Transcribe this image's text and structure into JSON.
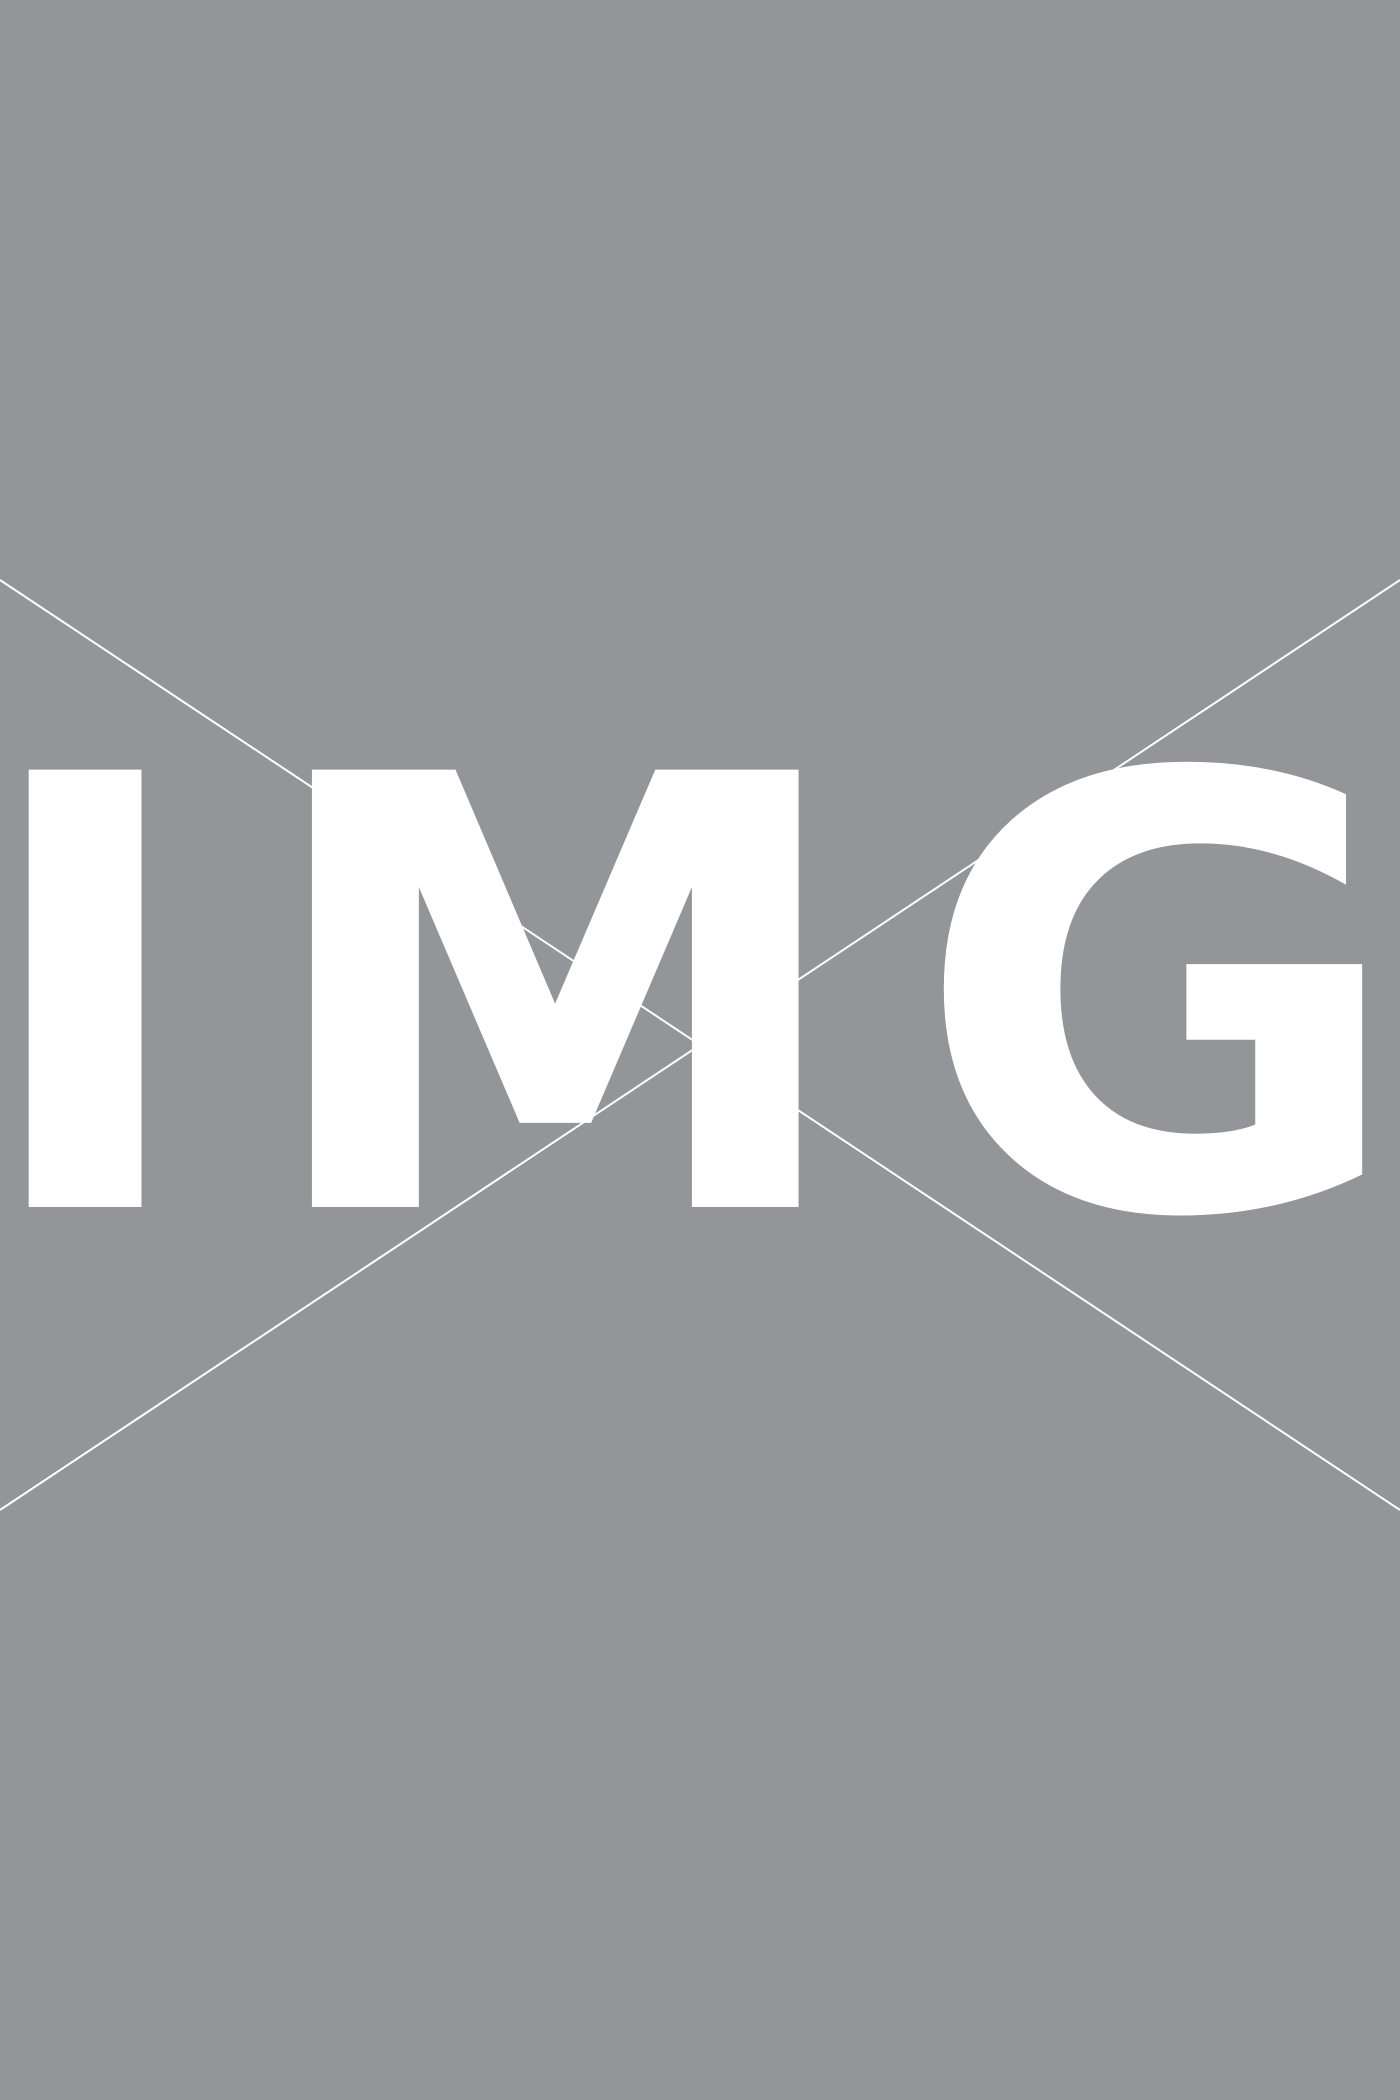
{
  "placeholder": {
    "label": "IMG",
    "background_color": "#949599",
    "foreground_color": "#ffffff"
  }
}
